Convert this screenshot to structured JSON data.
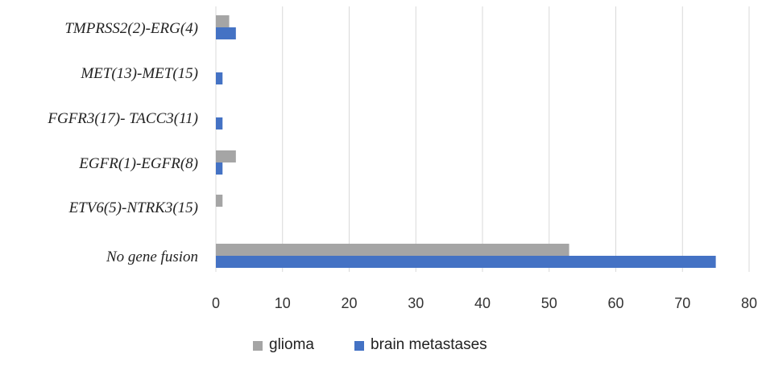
{
  "chart_data": {
    "type": "bar",
    "orientation": "horizontal",
    "categories": [
      "TMPRSS2(2)-ERG(4)",
      "MET(13)-MET(15)",
      "FGFR3(17)- TACC3(11)",
      "EGFR(1)-EGFR(8)",
      "ETV6(5)-NTRK3(15)",
      "No gene fusion"
    ],
    "series": [
      {
        "name": "glioma",
        "color": "#a5a5a5",
        "values": [
          2,
          0,
          0,
          3,
          1,
          53
        ]
      },
      {
        "name": "brain metastases",
        "color": "#4472c4",
        "values": [
          3,
          1,
          1,
          1,
          0,
          75
        ]
      }
    ],
    "xlim": [
      0,
      80
    ],
    "xticks": [
      "0",
      "10",
      "20",
      "30",
      "40",
      "50",
      "60",
      "70",
      "80"
    ],
    "grid": "vertical",
    "legend_position": "bottom",
    "title": "",
    "xlabel": "",
    "ylabel": ""
  }
}
